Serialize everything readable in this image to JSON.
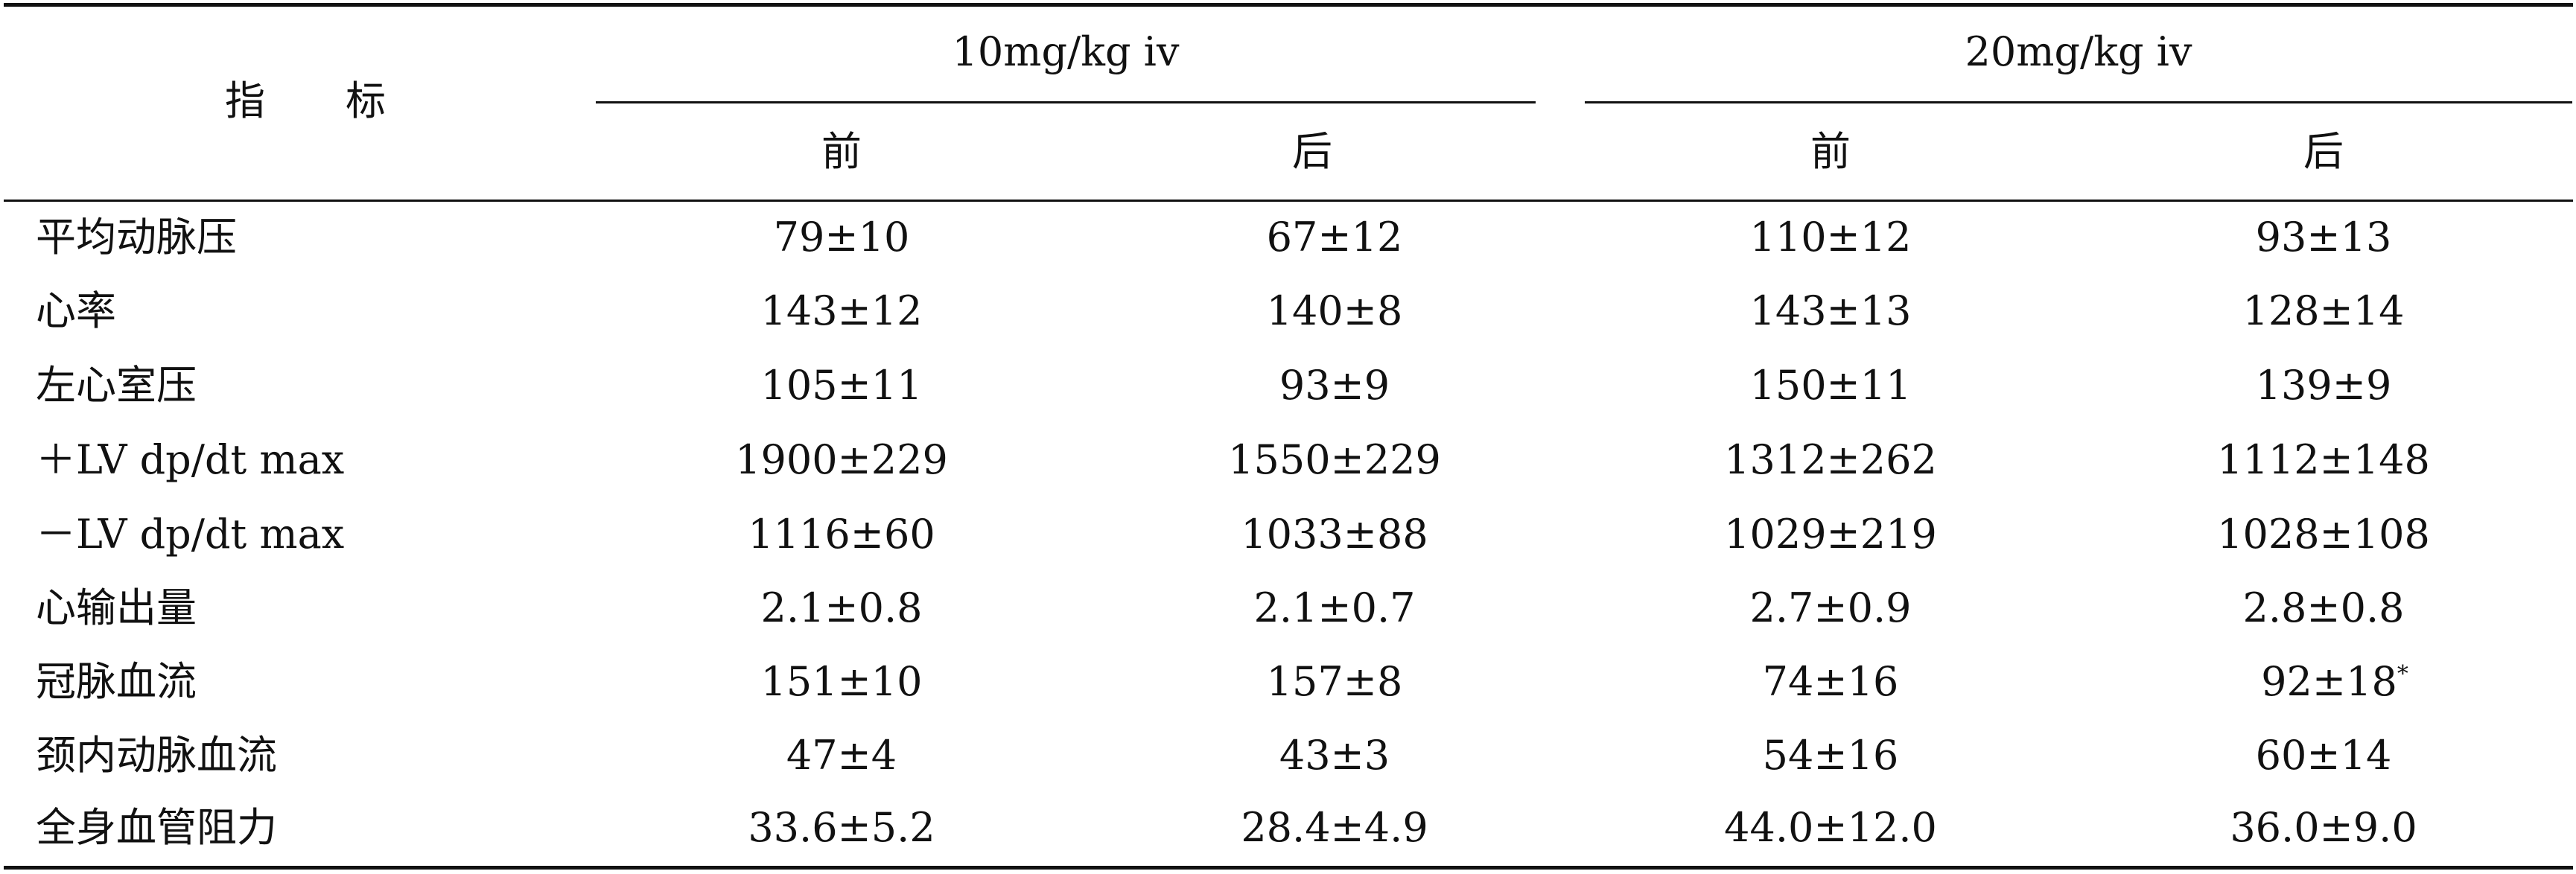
{
  "table": {
    "header": {
      "indicator_label": "指　　标",
      "groups": [
        {
          "label": "10mg/kg iv",
          "sub": [
            "前",
            "后"
          ]
        },
        {
          "label": "20mg/kg iv",
          "sub": [
            "前",
            "后"
          ]
        }
      ]
    },
    "rows": [
      {
        "label": "平均动脉压",
        "cells": [
          "79±10",
          "67±12",
          "110±12",
          "93±13"
        ]
      },
      {
        "label": "心率",
        "cells": [
          "143±12",
          "140±8",
          "143±13",
          "128±14"
        ]
      },
      {
        "label": "左心室压",
        "cells": [
          "105±11",
          "93±9",
          "150±11",
          "139±9"
        ]
      },
      {
        "label": "＋LV dp/dt max",
        "cells": [
          "1900±229",
          "1550±229",
          "1312±262",
          "1112±148"
        ]
      },
      {
        "label": "－LV dp/dt max",
        "cells": [
          "1116±60",
          "1033±88",
          "1029±219",
          "1028±108"
        ]
      },
      {
        "label": "心输出量",
        "cells": [
          "2.1±0.8",
          "2.1±0.7",
          "2.7±0.9",
          "2.8±0.8"
        ]
      },
      {
        "label": "冠脉血流",
        "cells": [
          "151±10",
          "157±8",
          "74±16",
          "92±18"
        ],
        "marks": [
          "",
          "",
          "",
          "*"
        ]
      },
      {
        "label": "颈内动脉血流",
        "cells": [
          "47±4",
          "43±3",
          "54±16",
          "60±14"
        ]
      },
      {
        "label": "全身血管阻力",
        "cells": [
          "33.6±5.2",
          "28.4±4.9",
          "44.0±12.0",
          "36.0±9.0"
        ]
      }
    ]
  }
}
